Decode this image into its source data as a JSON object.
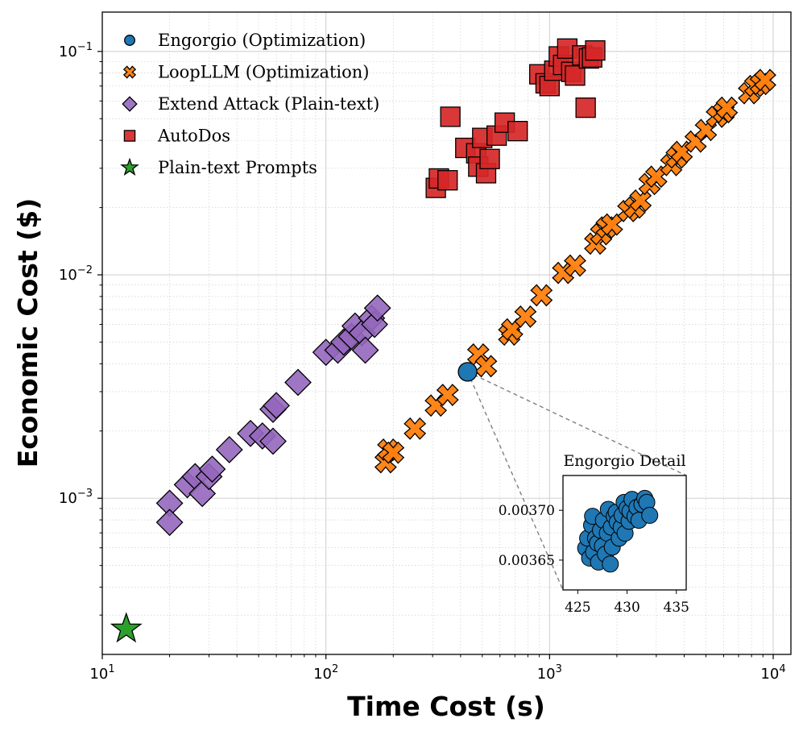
{
  "chart_data": {
    "type": "scatter",
    "xlabel": "Time Cost (s)",
    "ylabel": "Economic Cost ($)",
    "xscale": "log",
    "yscale": "log",
    "xlim": [
      10,
      12000
    ],
    "ylim": [
      0.0002,
      0.15
    ],
    "grid": true,
    "legend_position": "top-left",
    "x_ticks": [
      {
        "value": 10,
        "base": "10",
        "exp": "1"
      },
      {
        "value": 100,
        "base": "10",
        "exp": "2"
      },
      {
        "value": 1000,
        "base": "10",
        "exp": "3"
      },
      {
        "value": 10000,
        "base": "10",
        "exp": "4"
      }
    ],
    "y_ticks": [
      {
        "value": 0.001,
        "base": "10",
        "exp": "−3"
      },
      {
        "value": 0.01,
        "base": "10",
        "exp": "−2"
      },
      {
        "value": 0.1,
        "base": "10",
        "exp": "−1"
      }
    ],
    "series": [
      {
        "name": "Engorgio (Optimization)",
        "marker": "circle",
        "color": "#1f77b4",
        "points": [
          [
            430,
            0.00368
          ]
        ]
      },
      {
        "name": "LoopLLM (Optimization)",
        "marker": "x",
        "color": "#ff7f0e",
        "points": [
          [
            185,
            0.00145
          ],
          [
            190,
            0.00165
          ],
          [
            200,
            0.0016
          ],
          [
            250,
            0.00205
          ],
          [
            310,
            0.0026
          ],
          [
            350,
            0.0029
          ],
          [
            480,
            0.0044
          ],
          [
            520,
            0.0039
          ],
          [
            660,
            0.0054
          ],
          [
            680,
            0.0057
          ],
          [
            780,
            0.0065
          ],
          [
            920,
            0.0081
          ],
          [
            1150,
            0.0102
          ],
          [
            1300,
            0.011
          ],
          [
            1600,
            0.0138
          ],
          [
            1700,
            0.0152
          ],
          [
            1800,
            0.0163
          ],
          [
            1900,
            0.0168
          ],
          [
            2250,
            0.0193
          ],
          [
            2400,
            0.02
          ],
          [
            2550,
            0.0215
          ],
          [
            2800,
            0.0255
          ],
          [
            3000,
            0.0275
          ],
          [
            3500,
            0.031
          ],
          [
            3700,
            0.0335
          ],
          [
            3900,
            0.0355
          ],
          [
            4500,
            0.0395
          ],
          [
            5000,
            0.0445
          ],
          [
            5600,
            0.051
          ],
          [
            6000,
            0.0535
          ],
          [
            6200,
            0.056
          ],
          [
            7800,
            0.065
          ],
          [
            8300,
            0.07
          ],
          [
            8800,
            0.0715
          ],
          [
            9200,
            0.0745
          ]
        ]
      },
      {
        "name": "Extend Attack (Plain-text)",
        "marker": "diamond",
        "color": "#9467bd",
        "points": [
          [
            20,
            0.00095
          ],
          [
            20,
            0.00078
          ],
          [
            24,
            0.00115
          ],
          [
            26,
            0.00125
          ],
          [
            28,
            0.00105
          ],
          [
            30,
            0.00125
          ],
          [
            31,
            0.00135
          ],
          [
            37,
            0.00165
          ],
          [
            46,
            0.00195
          ],
          [
            52,
            0.0019
          ],
          [
            58,
            0.0018
          ],
          [
            58,
            0.0025
          ],
          [
            60,
            0.0026
          ],
          [
            75,
            0.0033
          ],
          [
            100,
            0.0045
          ],
          [
            113,
            0.0046
          ],
          [
            120,
            0.005
          ],
          [
            130,
            0.0053
          ],
          [
            135,
            0.0059
          ],
          [
            145,
            0.0055
          ],
          [
            150,
            0.0046
          ],
          [
            160,
            0.0064
          ],
          [
            165,
            0.006
          ],
          [
            170,
            0.0071
          ]
        ]
      },
      {
        "name": "AutoDos",
        "marker": "square",
        "color": "#d62728",
        "points": [
          [
            310,
            0.0245
          ],
          [
            320,
            0.027
          ],
          [
            350,
            0.0265
          ],
          [
            360,
            0.051
          ],
          [
            420,
            0.037
          ],
          [
            470,
            0.035
          ],
          [
            480,
            0.0305
          ],
          [
            500,
            0.041
          ],
          [
            520,
            0.0285
          ],
          [
            540,
            0.033
          ],
          [
            580,
            0.042
          ],
          [
            630,
            0.048
          ],
          [
            720,
            0.044
          ],
          [
            900,
            0.079
          ],
          [
            960,
            0.072
          ],
          [
            1000,
            0.07
          ],
          [
            1050,
            0.082
          ],
          [
            1100,
            0.095
          ],
          [
            1150,
            0.087
          ],
          [
            1200,
            0.103
          ],
          [
            1250,
            0.081
          ],
          [
            1300,
            0.078
          ],
          [
            1400,
            0.096
          ],
          [
            1450,
            0.056
          ],
          [
            1500,
            0.093
          ],
          [
            1550,
            0.094
          ],
          [
            1600,
            0.101
          ]
        ]
      },
      {
        "name": "Plain-text Prompts",
        "marker": "star",
        "color": "#2ca02c",
        "points": [
          [
            12.8,
            0.00026
          ]
        ]
      }
    ],
    "inset": {
      "title": "Engorgio Detail",
      "xlim": [
        423.5,
        436
      ],
      "ylim": [
        0.00362,
        0.003735
      ],
      "x_ticks": [
        {
          "value": 425,
          "label": "425"
        },
        {
          "value": 430,
          "label": "430"
        },
        {
          "value": 435,
          "label": "435"
        }
      ],
      "y_ticks": [
        {
          "value": 0.00365,
          "label": "0.00365"
        },
        {
          "value": 0.0037,
          "label": "0.00370"
        }
      ],
      "points": [
        [
          425.8,
          0.003662
        ],
        [
          426,
          0.003672
        ],
        [
          426.2,
          0.003652
        ],
        [
          426.4,
          0.003685
        ],
        [
          426.5,
          0.003694
        ],
        [
          426.6,
          0.003658
        ],
        [
          426.8,
          0.003672
        ],
        [
          427,
          0.003667
        ],
        [
          427.1,
          0.003648
        ],
        [
          427.3,
          0.00368
        ],
        [
          427.5,
          0.003664
        ],
        [
          427.6,
          0.00369
        ],
        [
          427.8,
          0.003656
        ],
        [
          428,
          0.003677
        ],
        [
          428.1,
          0.003701
        ],
        [
          428.3,
          0.003646
        ],
        [
          428.4,
          0.003683
        ],
        [
          428.5,
          0.003663
        ],
        [
          428.7,
          0.003694
        ],
        [
          428.9,
          0.003698
        ],
        [
          429,
          0.003688
        ],
        [
          429.2,
          0.003672
        ],
        [
          429.4,
          0.003683
        ],
        [
          429.5,
          0.003695
        ],
        [
          429.7,
          0.003708
        ],
        [
          429.8,
          0.003677
        ],
        [
          430,
          0.003702
        ],
        [
          430.2,
          0.003689
        ],
        [
          430.3,
          0.003699
        ],
        [
          430.5,
          0.003711
        ],
        [
          430.8,
          0.003694
        ],
        [
          431,
          0.003703
        ],
        [
          431.2,
          0.00369
        ],
        [
          431.5,
          0.003706
        ],
        [
          431.8,
          0.003712
        ],
        [
          432,
          0.003708
        ],
        [
          432.3,
          0.003695
        ]
      ]
    }
  }
}
